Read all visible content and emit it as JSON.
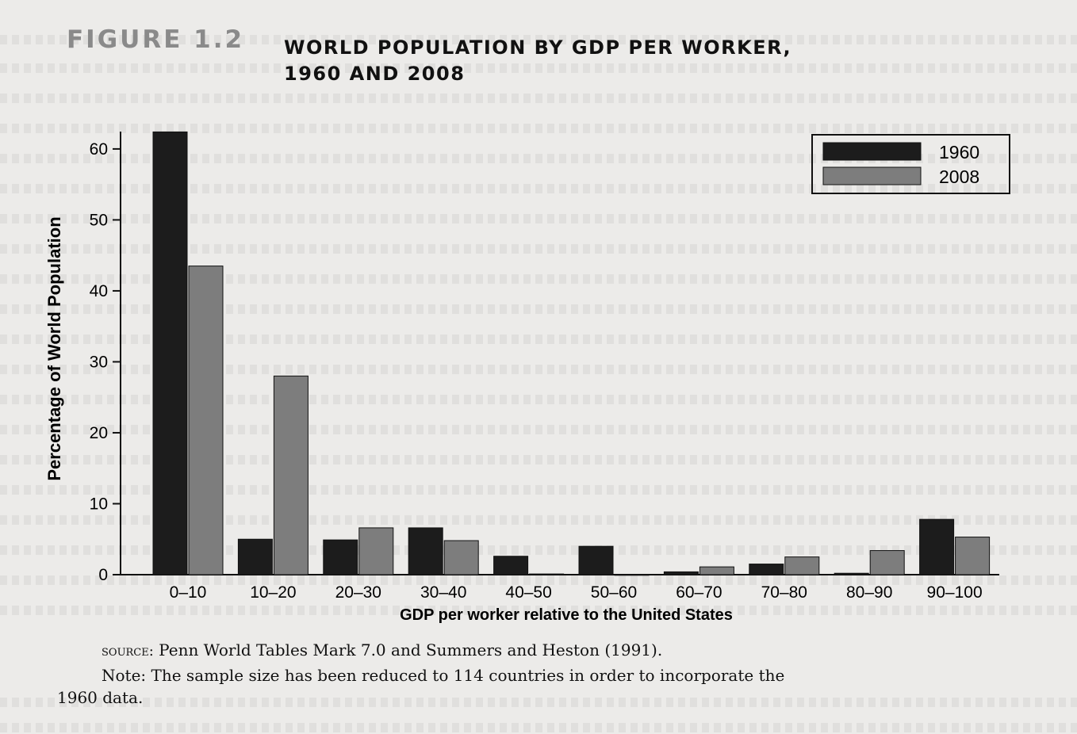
{
  "figure": {
    "label": "FIGURE 1.2",
    "title_line1": "WORLD POPULATION BY GDP PER WORKER,",
    "title_line2": "1960 AND 2008",
    "source_prefix": "source:",
    "source_text": "Penn World Tables Mark 7.0 and Summers and Heston (1991).",
    "note_line1": "Note: The sample size has been reduced to 114 countries in order to incorporate the",
    "note_line2": "1960 data."
  },
  "colors": {
    "series_1960": "#1c1c1c",
    "series_2008": "#7d7d7d",
    "page_bg": "#ecebe9"
  },
  "chart_data": {
    "type": "bar",
    "title": "WORLD POPULATION BY GDP PER WORKER, 1960 AND 2008",
    "xlabel": "GDP per worker relative to the United States",
    "ylabel": "Percentage of World Population",
    "ylim": [
      0,
      62
    ],
    "yticks": [
      0,
      10,
      20,
      30,
      40,
      50,
      60
    ],
    "grid": false,
    "legend_position": "top-right",
    "categories": [
      "0–10",
      "10–20",
      "20–30",
      "30–40",
      "40–50",
      "50–60",
      "60–70",
      "70–80",
      "80–90",
      "90–100"
    ],
    "series": [
      {
        "name": "1960",
        "values": [
          62.4,
          5.0,
          4.9,
          6.6,
          2.6,
          4.0,
          0.4,
          1.5,
          0.2,
          7.8
        ]
      },
      {
        "name": "2008",
        "values": [
          43.5,
          28.0,
          6.6,
          4.8,
          0.1,
          0.0,
          1.1,
          2.5,
          3.4,
          5.3
        ]
      }
    ]
  }
}
